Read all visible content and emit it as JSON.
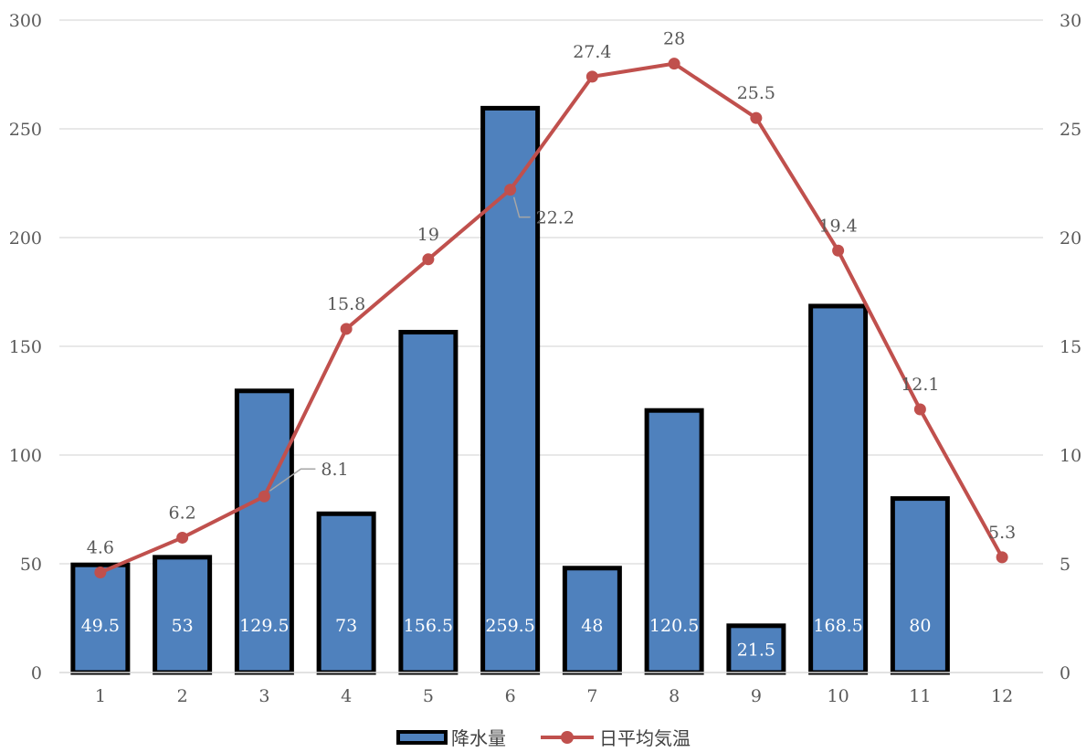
{
  "chart_data": {
    "type": "bar",
    "categories": [
      "1",
      "2",
      "3",
      "4",
      "5",
      "6",
      "7",
      "8",
      "9",
      "10",
      "11",
      "12"
    ],
    "series": [
      {
        "name": "降水量",
        "type": "bar",
        "axis": "left",
        "color": "#4F81BD",
        "values": [
          49.5,
          53,
          129.5,
          73,
          156.5,
          259.5,
          48,
          120.5,
          21.5,
          168.5,
          80,
          null
        ],
        "labels": [
          "49.5",
          "53",
          "129.5",
          "73",
          "156.5",
          "259.5",
          "48",
          "120.5",
          "21.5",
          "168.5",
          "80",
          ""
        ]
      },
      {
        "name": "日平均気温",
        "type": "line",
        "axis": "right",
        "color": "#C0504D",
        "values": [
          4.6,
          6.2,
          8.1,
          15.8,
          19,
          22.2,
          27.4,
          28,
          25.5,
          19.4,
          12.1,
          5.3
        ],
        "labels": [
          "4.6",
          "6.2",
          "8.1",
          "15.8",
          "19",
          "22.2",
          "27.4",
          "28",
          "25.5",
          "19.4",
          "12.1",
          "5.3"
        ]
      }
    ],
    "y_left": {
      "min": 0,
      "max": 300,
      "ticks": [
        "0",
        "50",
        "100",
        "150",
        "200",
        "250",
        "300"
      ]
    },
    "y_right": {
      "min": 0,
      "max": 30,
      "ticks": [
        "0",
        "5",
        "10",
        "15",
        "20",
        "25",
        "30"
      ]
    },
    "grid": true,
    "legend": "bottom"
  }
}
